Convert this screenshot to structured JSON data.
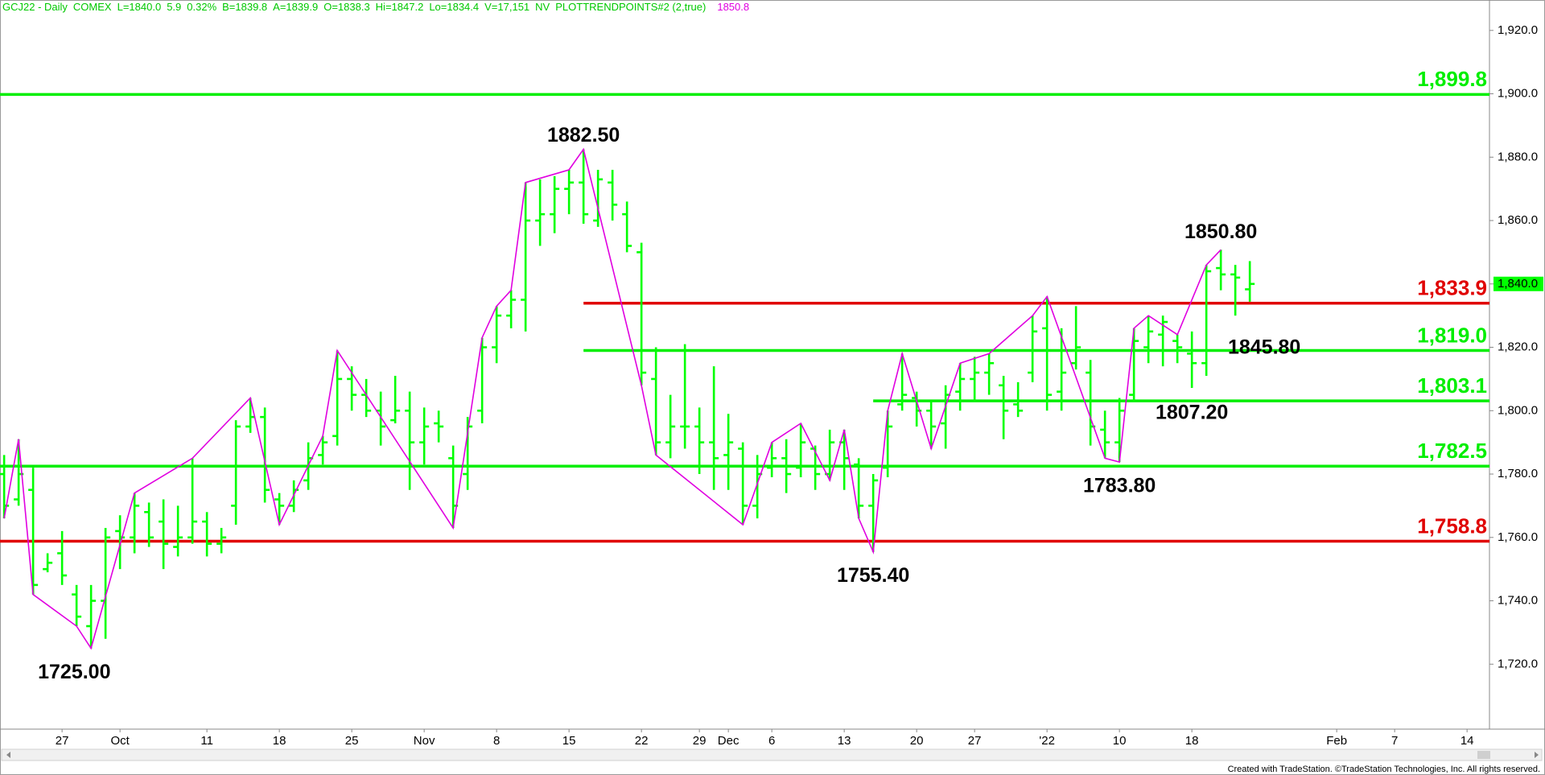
{
  "chart_data": {
    "type": "ohlc",
    "header": [
      "GCJ22 - Daily",
      "COMEX",
      "L=1840.0",
      "5.9",
      "0.32%",
      "B=1839.8",
      "A=1839.9",
      "O=1838.3",
      "Hi=1847.2",
      "Lo=1834.4",
      "V=17,151",
      "NV",
      "PLOTTRENDPOINTS#2 (2,true)",
      "1850.8"
    ],
    "header_colors": [
      "#00c800",
      "#e000e0"
    ],
    "footer": "Created with TradeStation. ©TradeStation Technologies, Inc. All rights reserved.",
    "color": "#00ff00",
    "trend_color": "#e000e0",
    "categories": [
      null,
      null,
      null,
      null,
      "27",
      null,
      null,
      null,
      "Oct",
      null,
      null,
      null,
      null,
      null,
      "11",
      null,
      null,
      null,
      null,
      "18",
      null,
      null,
      null,
      null,
      "25",
      null,
      null,
      null,
      null,
      "Nov",
      null,
      null,
      null,
      null,
      "8",
      null,
      null,
      null,
      null,
      "15",
      null,
      null,
      null,
      null,
      "22",
      null,
      null,
      null,
      "29",
      null,
      "Dec",
      null,
      null,
      "6",
      null,
      null,
      null,
      null,
      "13",
      null,
      null,
      null,
      null,
      "20",
      null,
      null,
      null,
      "27",
      null,
      null,
      null,
      null,
      "'22",
      null,
      null,
      null,
      null,
      "10",
      null,
      null,
      null,
      null,
      "18",
      null,
      null,
      null,
      null,
      null,
      null,
      null,
      null,
      null,
      "Feb",
      null,
      null,
      null,
      "7",
      null,
      null,
      null,
      null,
      "14"
    ],
    "open": [
      1780,
      1772,
      1775,
      1750,
      1755,
      1742,
      1732,
      1740,
      1762,
      1760,
      1768,
      1765,
      1757,
      1760,
      1765,
      1758,
      1770,
      1795,
      1798,
      1772,
      1770,
      1778,
      1786,
      1792,
      1810,
      1805,
      1800,
      1797,
      1800,
      1790,
      1796,
      1785,
      1780,
      1800,
      1820,
      1830,
      1835,
      1860,
      1862,
      1870,
      1872,
      1860,
      1872,
      1862,
      1850,
      1810,
      1790,
      1795,
      1795,
      1790,
      1786,
      1788,
      1770,
      1782,
      1785,
      1782,
      1788,
      1780,
      1790,
      1783,
      1770,
      1782,
      1802,
      1804,
      1800,
      1796,
      1806,
      1810,
      1812,
      1808,
      1802,
      1812,
      1826,
      1806,
      1815,
      1812,
      1794,
      1790,
      1805,
      1820,
      1824,
      1822,
      1818,
      1815,
      1845,
      1843,
      1838.3,
      null,
      null,
      null,
      null,
      null,
      null,
      null,
      null,
      null,
      null,
      null,
      null,
      null,
      null,
      null
    ],
    "high": [
      1786,
      1791,
      1782,
      1755,
      1762,
      1745,
      1745,
      1763,
      1767,
      1774,
      1771,
      1772,
      1770,
      1785,
      1768,
      1763,
      1797,
      1804,
      1801,
      1774,
      1778,
      1790,
      1792,
      1819,
      1814,
      1810,
      1806,
      1811,
      1806,
      1801,
      1800,
      1789,
      1798,
      1823,
      1833,
      1838,
      1872,
      1873,
      1874,
      1876,
      1882.5,
      1876,
      1876,
      1866,
      1853,
      1820,
      1805,
      1821,
      1801,
      1814,
      1799,
      1790,
      1786,
      1790,
      1791,
      1796,
      1789,
      1794,
      1794,
      1785,
      1780,
      1800,
      1818,
      1806,
      1803,
      1808,
      1815,
      1817,
      1818,
      1811,
      1809,
      1830,
      1836,
      1826,
      1833,
      1816,
      1800,
      1804,
      1826,
      1830,
      1830,
      1824,
      1825,
      1846,
      1850.8,
      1846,
      1847.2,
      null,
      null,
      null,
      null,
      null,
      null,
      null,
      null,
      null,
      null,
      null,
      null,
      null,
      null,
      null
    ],
    "low": [
      1766,
      1770,
      1742,
      1749,
      1745,
      1732,
      1725,
      1728,
      1750,
      1755,
      1757,
      1750,
      1754,
      1758,
      1754,
      1755,
      1764,
      1793,
      1771,
      1764,
      1768,
      1775,
      1783,
      1789,
      1800,
      1798,
      1789,
      1796,
      1775,
      1783,
      1790,
      1763,
      1775,
      1796,
      1815,
      1826,
      1825,
      1852,
      1856,
      1862,
      1859,
      1858,
      1860,
      1850,
      1808,
      1786,
      1785,
      1788,
      1780,
      1775,
      1775,
      1764,
      1766,
      1779,
      1774,
      1779,
      1775,
      1778,
      1775,
      1766,
      1755.4,
      1779,
      1800,
      1795,
      1788,
      1788,
      1800,
      1803,
      1805,
      1791,
      1798,
      1809,
      1800,
      1800,
      1813,
      1789,
      1785,
      1783.8,
      1803,
      1815,
      1814,
      1815,
      1807.2,
      1811,
      1838,
      1830,
      1834.4,
      null,
      null,
      null,
      null,
      null,
      null,
      null,
      null,
      null,
      null,
      null,
      null,
      null,
      null,
      null
    ],
    "close": [
      1770,
      1780,
      1745,
      1752,
      1748,
      1735,
      1740,
      1760,
      1760,
      1770,
      1760,
      1758,
      1760,
      1765,
      1758,
      1760,
      1795,
      1798,
      1775,
      1770,
      1775,
      1785,
      1790,
      1810,
      1805,
      1800,
      1795,
      1800,
      1790,
      1795,
      1795,
      1770,
      1795,
      1820,
      1830,
      1835,
      1860,
      1862,
      1870,
      1872,
      1862,
      1873,
      1865,
      1852,
      1812,
      1790,
      1795,
      1795,
      1790,
      1785,
      1790,
      1770,
      1780,
      1785,
      1780,
      1790,
      1780,
      1790,
      1785,
      1770,
      1778,
      1795,
      1805,
      1800,
      1795,
      1805,
      1810,
      1812,
      1815,
      1800,
      1800,
      1825,
      1805,
      1812,
      1820,
      1795,
      1790,
      1800,
      1822,
      1825,
      1828,
      1820,
      1815,
      1844,
      1843,
      1842,
      1840,
      null,
      null,
      null,
      null,
      null,
      null,
      null,
      null,
      null,
      null,
      null,
      null,
      null,
      null,
      null
    ],
    "ylim": [
      1699.5,
      1929.6
    ],
    "yticks": [
      {
        "value": 1720,
        "label": "1,720.0"
      },
      {
        "value": 1740,
        "label": "1,740.0"
      },
      {
        "value": 1760,
        "label": "1,760.0"
      },
      {
        "value": 1780,
        "label": "1,780.0"
      },
      {
        "value": 1800,
        "label": "1,800.0"
      },
      {
        "value": 1820,
        "label": "1,820.0"
      },
      {
        "value": 1840,
        "label": "1,840.0"
      },
      {
        "value": 1860,
        "label": "1,860.0"
      },
      {
        "value": 1880,
        "label": "1,880.0"
      },
      {
        "value": 1900,
        "label": "1,900.0"
      },
      {
        "value": 1920,
        "label": "1,920.0"
      }
    ],
    "last_price": {
      "value": 1840,
      "label": "1,840.0"
    },
    "levels": [
      {
        "value": 1899.8,
        "label": "1,899.8",
        "color": "#00ee00"
      },
      {
        "value": 1833.9,
        "label": "1,833.9",
        "color": "#e00000"
      },
      {
        "value": 1819.0,
        "label": "1,819.0",
        "color": "#00ee00"
      },
      {
        "value": 1803.1,
        "label": "1,803.1",
        "color": "#00ee00"
      },
      {
        "value": 1782.5,
        "label": "1,782.5",
        "color": "#00ee00"
      },
      {
        "value": 1758.8,
        "label": "1,758.8",
        "color": "#e00000"
      }
    ],
    "annotations": [
      {
        "value": 1882.5,
        "label": "1882.50"
      },
      {
        "value": 1725.0,
        "label": "1725.00"
      },
      {
        "value": 1755.4,
        "label": "1755.40"
      },
      {
        "value": 1850.8,
        "label": "1850.80"
      },
      {
        "value": 1845.8,
        "label": "1845.80"
      },
      {
        "value": 1807.2,
        "label": "1807.20"
      },
      {
        "value": 1783.8,
        "label": "1783.80"
      }
    ]
  }
}
